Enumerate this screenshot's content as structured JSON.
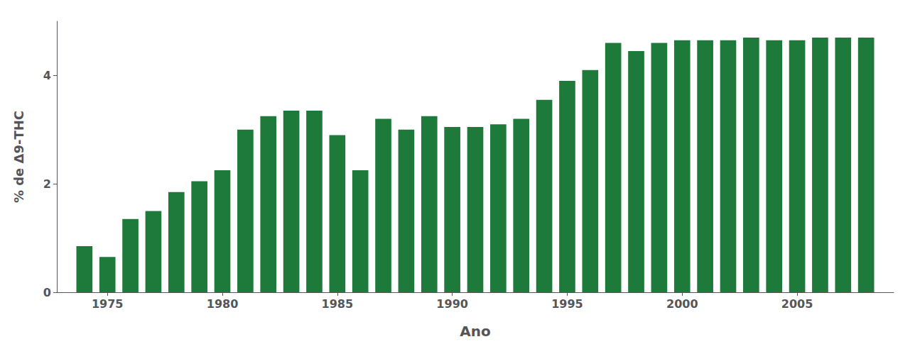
{
  "chart_data": {
    "type": "bar",
    "xlabel": "Ano",
    "ylabel": "% de Δ9-THC",
    "x": [
      1974,
      1975,
      1976,
      1977,
      1978,
      1979,
      1980,
      1981,
      1982,
      1983,
      1984,
      1985,
      1986,
      1987,
      1988,
      1989,
      1990,
      1991,
      1992,
      1993,
      1994,
      1995,
      1996,
      1997,
      1998,
      1999,
      2000,
      2001,
      2002,
      2003,
      2004,
      2005,
      2006,
      2007,
      2008
    ],
    "values": [
      0.85,
      0.65,
      1.35,
      1.5,
      1.85,
      2.05,
      2.25,
      3.0,
      3.25,
      3.35,
      3.35,
      2.9,
      2.25,
      3.2,
      3.0,
      3.25,
      3.05,
      3.05,
      3.1,
      3.2,
      3.55,
      3.9,
      4.1,
      4.6,
      4.45,
      4.6,
      4.65,
      4.65,
      4.65,
      4.7,
      4.65,
      4.65,
      4.7,
      4.7,
      4.7
    ],
    "color": "#1e7a3a",
    "xlim": [
      1972.8,
      2009.2
    ],
    "xticks": [
      1975,
      1980,
      1985,
      1990,
      1995,
      2000,
      2005
    ],
    "ylim": [
      0,
      5.0
    ],
    "yticks": [
      0,
      2,
      4
    ],
    "grid": false
  }
}
